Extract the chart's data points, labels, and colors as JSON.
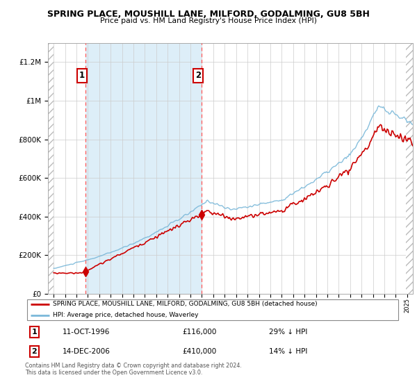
{
  "title": "SPRING PLACE, MOUSHILL LANE, MILFORD, GODALMING, GU8 5BH",
  "subtitle": "Price paid vs. HM Land Registry's House Price Index (HPI)",
  "legend_line1": "SPRING PLACE, MOUSHILL LANE, MILFORD, GODALMING, GU8 5BH (detached house)",
  "legend_line2": "HPI: Average price, detached house, Waverley",
  "annotation1_date": "11-OCT-1996",
  "annotation1_price": "£116,000",
  "annotation1_hpi": "29% ↓ HPI",
  "annotation2_date": "14-DEC-2006",
  "annotation2_price": "£410,000",
  "annotation2_hpi": "14% ↓ HPI",
  "footnote": "Contains HM Land Registry data © Crown copyright and database right 2024.\nThis data is licensed under the Open Government Licence v3.0.",
  "sale1_year": 1996.79,
  "sale1_value": 116000,
  "sale2_year": 2006.96,
  "sale2_value": 410000,
  "hpi_color": "#7ab8d9",
  "sale_color": "#cc0000",
  "dashed_line_color": "#ff5555",
  "shaded_fill_color": "#ddeef8",
  "ylim_min": 0,
  "ylim_max": 1300000,
  "xlim_min": 1993.5,
  "xlim_max": 2025.5,
  "hpi_seed": 10,
  "sale_seed": 20
}
